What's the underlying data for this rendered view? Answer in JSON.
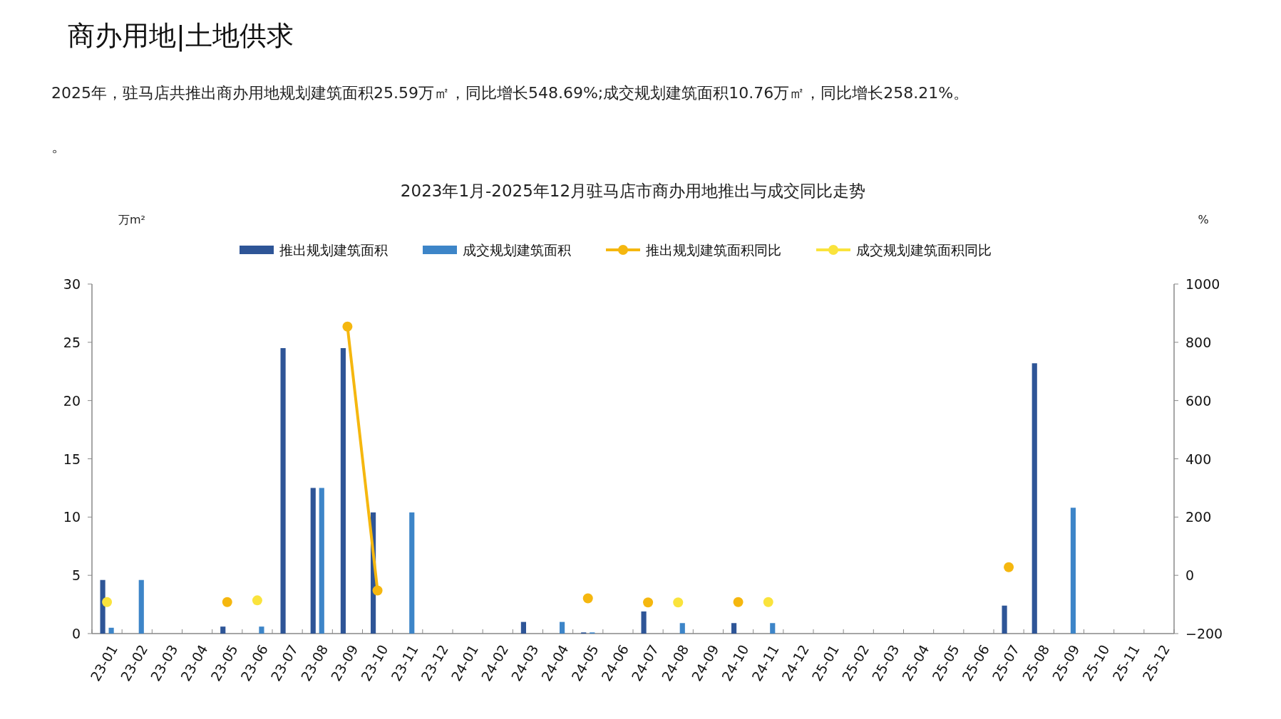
{
  "chart_data": {
    "type": "bar",
    "title": "商办用地|土地供求",
    "subtitle": "2023年1月-2025年12月驻马店市商办用地推出与成交同比走势",
    "annotations": [
      "2025年，驻马店共推出商办用地规划建筑面积25.59万㎡，同比增长548.69%;成交规划建筑面积10.76万㎡，同比增长258.21%。",
      "。"
    ],
    "ylabel": "万m²",
    "y2label": "%",
    "categories": [
      "23-01",
      "23-02",
      "23-03",
      "23-04",
      "23-05",
      "23-06",
      "23-07",
      "23-08",
      "23-09",
      "23-10",
      "23-11",
      "23-12",
      "24-01",
      "24-02",
      "24-03",
      "24-04",
      "24-05",
      "24-06",
      "24-07",
      "24-08",
      "24-09",
      "24-10",
      "24-11",
      "24-12",
      "25-01",
      "25-02",
      "25-03",
      "25-04",
      "25-05",
      "25-06",
      "25-07",
      "25-08",
      "25-09",
      "25-10",
      "25-11",
      "25-12"
    ],
    "series": [
      {
        "name": "推出规划建筑面积",
        "color": "#2e5597",
        "values": [
          4.6,
          null,
          null,
          null,
          0.6,
          null,
          24.5,
          12.5,
          24.5,
          10.4,
          null,
          null,
          null,
          null,
          1.0,
          null,
          0.1,
          null,
          1.9,
          null,
          null,
          0.9,
          null,
          null,
          null,
          null,
          null,
          null,
          null,
          null,
          2.4,
          23.2,
          null,
          null,
          null,
          null
        ]
      },
      {
        "name": "成交规划建筑面积",
        "color": "#3d85c8",
        "values": [
          0.5,
          4.6,
          null,
          null,
          null,
          0.6,
          null,
          12.5,
          null,
          null,
          10.4,
          null,
          null,
          null,
          null,
          1.0,
          0.1,
          null,
          null,
          0.9,
          null,
          null,
          0.9,
          null,
          null,
          null,
          null,
          null,
          null,
          null,
          null,
          null,
          10.8,
          null,
          null,
          null
        ]
      },
      {
        "name": "推出规划建筑面积同比",
        "type": "line",
        "axis": "y2",
        "color": "#f5b70f",
        "values": [
          null,
          null,
          null,
          null,
          -92,
          null,
          null,
          null,
          854,
          -52,
          null,
          null,
          null,
          null,
          null,
          null,
          -79,
          null,
          -93,
          null,
          null,
          -92,
          null,
          null,
          null,
          null,
          null,
          null,
          null,
          null,
          28,
          null,
          null,
          null,
          null,
          null
        ]
      },
      {
        "name": "成交规划建筑面积同比",
        "type": "scatter",
        "axis": "y2",
        "color": "#fae33c",
        "values": [
          -92,
          null,
          null,
          null,
          null,
          -86,
          null,
          null,
          null,
          null,
          null,
          null,
          null,
          null,
          null,
          null,
          null,
          null,
          null,
          -93,
          null,
          null,
          -92,
          null,
          null,
          null,
          null,
          null,
          null,
          null,
          null,
          null,
          null,
          null,
          null,
          null
        ]
      }
    ],
    "ylim": [
      0,
      30
    ],
    "yticks": [
      0,
      5,
      10,
      15,
      20,
      25,
      30
    ],
    "y2lim": [
      -200,
      1000
    ],
    "y2ticks": [
      -200,
      0,
      200,
      400,
      600,
      800,
      1000
    ],
    "legend": "top",
    "marker": "circle",
    "line_style": "solid",
    "grid": false
  }
}
